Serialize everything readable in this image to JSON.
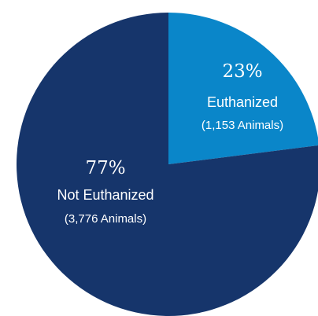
{
  "chart_data": {
    "type": "pie",
    "slices": [
      {
        "name": "Euthanized",
        "value": 23,
        "percent_label": "23%",
        "count_label": "(1,153 Animals)",
        "color": "#0a86c9"
      },
      {
        "name": "Not Euthanized",
        "value": 77,
        "percent_label": "77%",
        "count_label": "(3,776 Animals)",
        "color": "#16356b"
      }
    ],
    "label_color": "#ffffff"
  }
}
